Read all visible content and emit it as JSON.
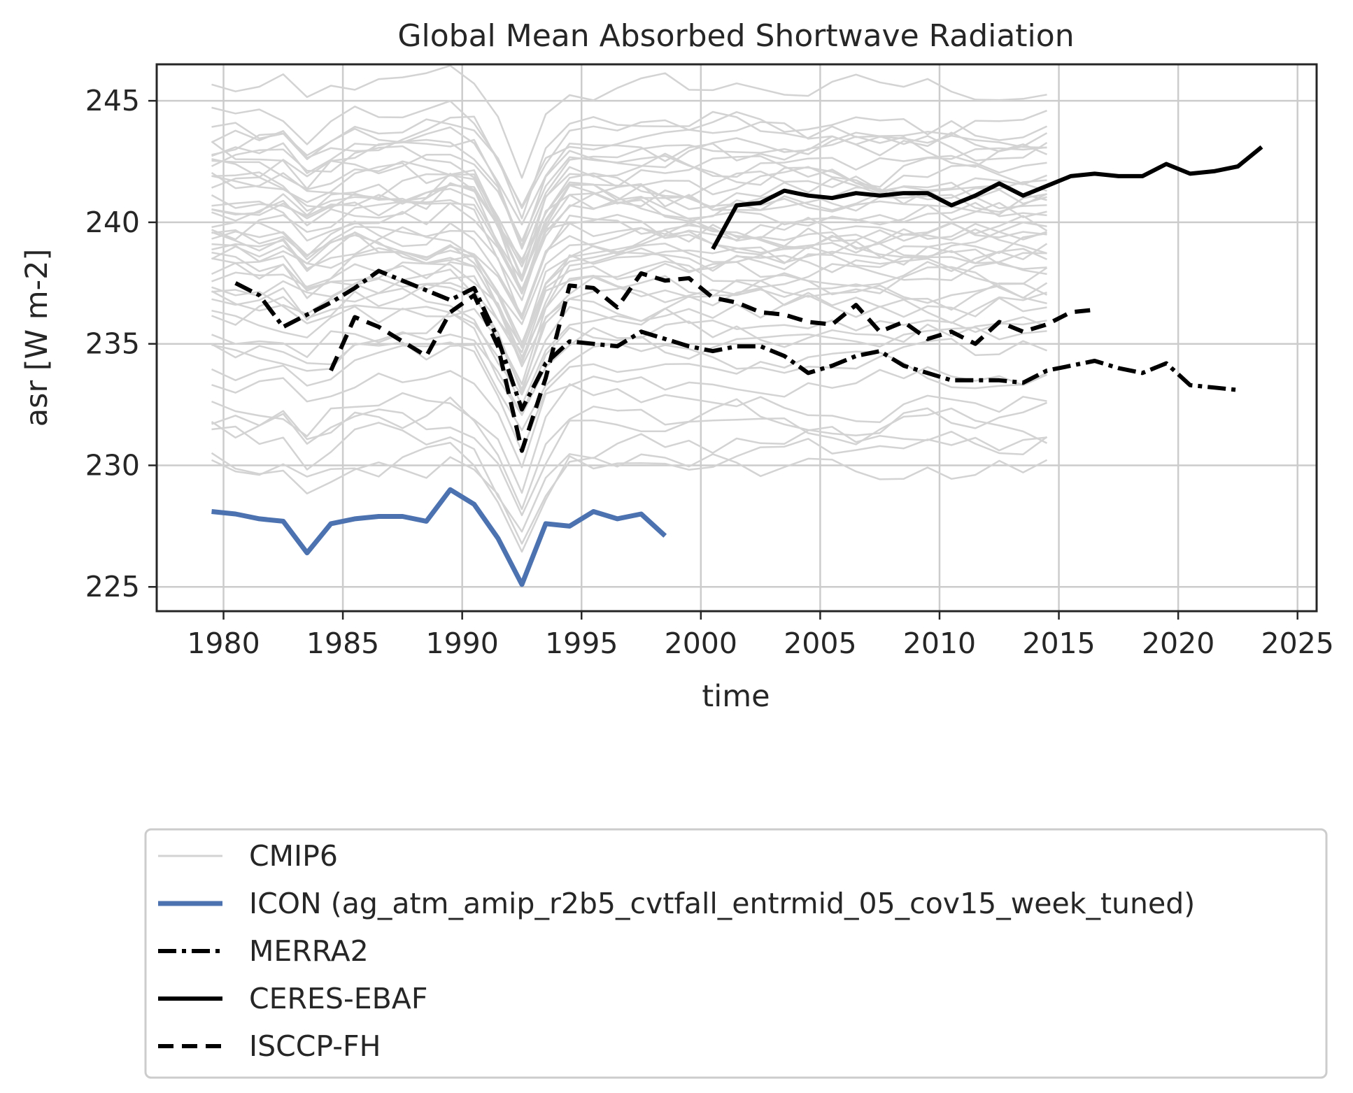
{
  "chart_data": {
    "type": "line",
    "title": "Global Mean Absorbed Shortwave Radiation",
    "xlabel": "time",
    "ylabel": "asr [W m-2]",
    "xlim": [
      1977.2,
      2025.8
    ],
    "ylim": [
      224.0,
      246.5
    ],
    "xticks": [
      1980,
      1985,
      1990,
      1995,
      2000,
      2005,
      2010,
      2015,
      2020,
      2025
    ],
    "yticks": [
      225,
      230,
      235,
      240,
      245
    ],
    "grid": true,
    "legend_position": "below the plot",
    "series": [
      {
        "name": "ICON (ag_atm_amip_r2b5_cvtfall_entrmid_05_cov15_week_tuned)",
        "color": "#4c72b0",
        "linestyle": "solid",
        "x": [
          1979.5,
          1980.5,
          1981.5,
          1982.5,
          1983.5,
          1984.5,
          1985.5,
          1986.5,
          1987.5,
          1988.5,
          1989.5,
          1990.5,
          1991.5,
          1992.5,
          1993.5,
          1994.5,
          1995.5,
          1996.5,
          1997.5,
          1998.5
        ],
        "y": [
          228.1,
          228.0,
          227.8,
          227.7,
          226.4,
          227.6,
          227.8,
          227.9,
          227.9,
          227.7,
          229.0,
          228.4,
          227.0,
          225.1,
          227.6,
          227.5,
          228.1,
          227.8,
          228.0,
          227.1
        ]
      },
      {
        "name": "MERRA2",
        "color": "#000000",
        "linestyle": "dashdot",
        "x": [
          1980.5,
          1981.5,
          1982.5,
          1983.5,
          1984.5,
          1985.5,
          1986.5,
          1987.5,
          1988.5,
          1989.5,
          1990.5,
          1991.5,
          1992.5,
          1993.5,
          1994.5,
          1995.5,
          1996.5,
          1997.5,
          1998.5,
          1999.5,
          2000.5,
          2001.5,
          2002.5,
          2003.5,
          2004.5,
          2005.5,
          2006.5,
          2007.5,
          2008.5,
          2009.5,
          2010.5,
          2011.5,
          2012.5,
          2013.5,
          2014.5,
          2015.5,
          2016.5,
          2017.5,
          2018.5,
          2019.5,
          2020.5,
          2021.5,
          2022.5
        ],
        "y": [
          237.5,
          237.0,
          235.7,
          236.2,
          236.7,
          237.3,
          238.0,
          237.6,
          237.2,
          236.8,
          237.3,
          235.2,
          232.3,
          234.2,
          235.1,
          235.0,
          234.9,
          235.5,
          235.2,
          234.9,
          234.7,
          234.9,
          234.9,
          234.5,
          233.8,
          234.1,
          234.5,
          234.7,
          234.1,
          233.8,
          233.5,
          233.5,
          233.5,
          233.4,
          233.9,
          234.1,
          234.3,
          234.0,
          233.8,
          234.2,
          233.3,
          233.2,
          233.1
        ]
      },
      {
        "name": "CERES-EBAF",
        "color": "#000000",
        "linestyle": "solid",
        "x": [
          2000.5,
          2001.5,
          2002.5,
          2003.5,
          2004.5,
          2005.5,
          2006.5,
          2007.5,
          2008.5,
          2009.5,
          2010.5,
          2011.5,
          2012.5,
          2013.5,
          2014.5,
          2015.5,
          2016.5,
          2017.5,
          2018.5,
          2019.5,
          2020.5,
          2021.5,
          2022.5,
          2023.5
        ],
        "y": [
          238.9,
          240.7,
          240.8,
          241.3,
          241.1,
          241.0,
          241.2,
          241.1,
          241.2,
          241.2,
          240.7,
          241.1,
          241.6,
          241.1,
          241.5,
          241.9,
          242.0,
          241.9,
          241.9,
          242.4,
          242.0,
          242.1,
          242.3,
          243.1
        ]
      },
      {
        "name": "ISCCP-FH",
        "color": "#000000",
        "linestyle": "dashed",
        "x": [
          1984.5,
          1985.5,
          1986.5,
          1987.5,
          1988.5,
          1989.5,
          1990.5,
          1991.5,
          1992.5,
          1993.5,
          1994.5,
          1995.5,
          1996.5,
          1997.5,
          1998.5,
          1999.5,
          2000.5,
          2001.5,
          2002.5,
          2003.5,
          2004.5,
          2005.5,
          2006.5,
          2007.5,
          2008.5,
          2009.5,
          2010.5,
          2011.5,
          2012.5,
          2013.5,
          2014.5,
          2015.5,
          2016.5
        ],
        "y": [
          233.9,
          236.1,
          235.7,
          235.1,
          234.5,
          236.3,
          237.0,
          234.9,
          230.6,
          233.6,
          237.4,
          237.3,
          236.5,
          237.9,
          237.6,
          237.7,
          236.9,
          236.7,
          236.3,
          236.2,
          235.9,
          235.8,
          236.6,
          235.5,
          235.9,
          235.2,
          235.5,
          235.0,
          235.9,
          235.5,
          235.8,
          236.3,
          236.4
        ]
      }
    ],
    "ensemble": {
      "name": "CMIP6",
      "color": "#d3d3d3",
      "x_start": 1979.5,
      "x_end": 2014.5,
      "baselines": [
        245.5,
        244.2,
        243.8,
        243.5,
        243.2,
        243.0,
        242.8,
        242.5,
        242.3,
        242.0,
        241.8,
        241.6,
        241.4,
        241.2,
        241.0,
        240.8,
        240.6,
        240.4,
        240.2,
        240.0,
        239.8,
        239.6,
        239.4,
        239.2,
        239.0,
        238.8,
        238.6,
        238.4,
        238.2,
        238.0,
        237.8,
        237.5,
        237.3,
        237.0,
        236.8,
        236.5,
        236.0,
        235.5,
        235.0,
        234.6,
        234.0,
        233.5,
        232.7,
        232.1,
        231.5,
        231.0,
        230.4,
        230.0
      ]
    }
  },
  "legend": [
    {
      "label": "CMIP6",
      "key": "cmip6"
    },
    {
      "label": "ICON (ag_atm_amip_r2b5_cvtfall_entrmid_05_cov15_week_tuned)",
      "key": "icon"
    },
    {
      "label": "MERRA2",
      "key": "merra2"
    },
    {
      "label": "CERES-EBAF",
      "key": "ceres"
    },
    {
      "label": "ISCCP-FH",
      "key": "isccp"
    }
  ]
}
